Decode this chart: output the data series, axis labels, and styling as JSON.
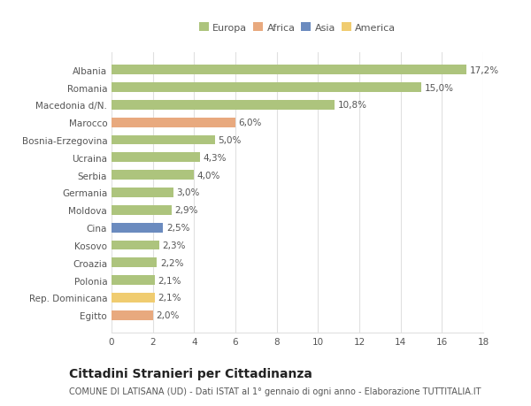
{
  "categories": [
    "Albania",
    "Romania",
    "Macedonia d/N.",
    "Marocco",
    "Bosnia-Erzegovina",
    "Ucraina",
    "Serbia",
    "Germania",
    "Moldova",
    "Cina",
    "Kosovo",
    "Croazia",
    "Polonia",
    "Rep. Dominicana",
    "Egitto"
  ],
  "values": [
    17.2,
    15.0,
    10.8,
    6.0,
    5.0,
    4.3,
    4.0,
    3.0,
    2.9,
    2.5,
    2.3,
    2.2,
    2.1,
    2.1,
    2.0
  ],
  "labels": [
    "17,2%",
    "15,0%",
    "10,8%",
    "6,0%",
    "5,0%",
    "4,3%",
    "4,0%",
    "3,0%",
    "2,9%",
    "2,5%",
    "2,3%",
    "2,2%",
    "2,1%",
    "2,1%",
    "2,0%"
  ],
  "continents": [
    "Europa",
    "Europa",
    "Europa",
    "Africa",
    "Europa",
    "Europa",
    "Europa",
    "Europa",
    "Europa",
    "Asia",
    "Europa",
    "Europa",
    "Europa",
    "America",
    "Africa"
  ],
  "colors": {
    "Europa": "#adc47d",
    "Africa": "#e8a97e",
    "Asia": "#6b8bbf",
    "America": "#f0cc70"
  },
  "xlim": [
    0,
    18
  ],
  "xticks": [
    0,
    2,
    4,
    6,
    8,
    10,
    12,
    14,
    16,
    18
  ],
  "title": "Cittadini Stranieri per Cittadinanza",
  "subtitle": "COMUNE DI LATISANA (UD) - Dati ISTAT al 1° gennaio di ogni anno - Elaborazione TUTTITALIA.IT",
  "background_color": "#ffffff",
  "bar_height": 0.55,
  "grid_color": "#e0e0e0",
  "text_color": "#555555",
  "label_fontsize": 7.5,
  "ytick_fontsize": 7.5,
  "xtick_fontsize": 7.5,
  "title_fontsize": 10,
  "subtitle_fontsize": 7,
  "legend_fontsize": 8
}
